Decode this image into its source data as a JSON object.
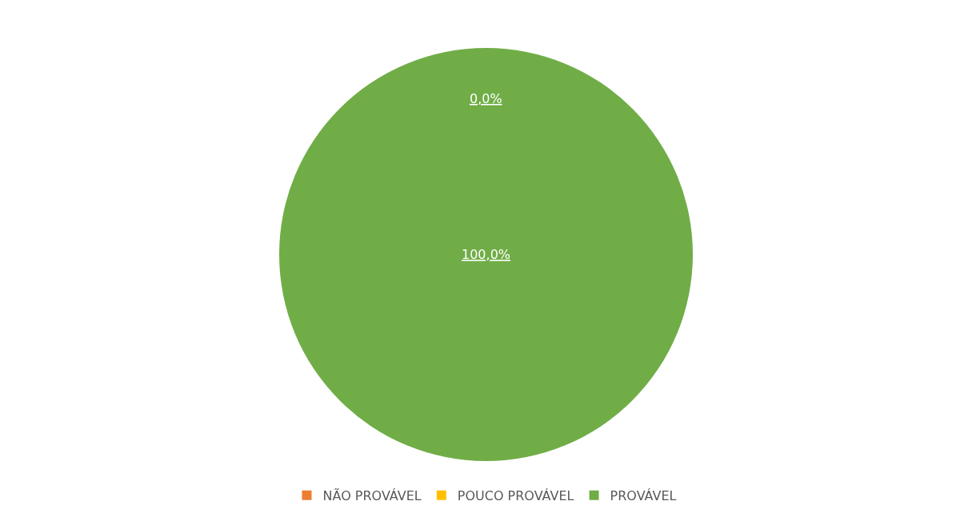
{
  "chart_data": {
    "type": "pie",
    "categories": [
      "NÃO PROVÁVEL",
      "POUCO PROVÁVEL",
      "PROVÁVEL"
    ],
    "values": [
      0,
      0,
      100
    ],
    "colors": [
      "#ed7d31",
      "#ffc000",
      "#70ad47"
    ],
    "value_labels": [
      "0,0%",
      null,
      "100,0%"
    ],
    "legend": "bottom"
  }
}
